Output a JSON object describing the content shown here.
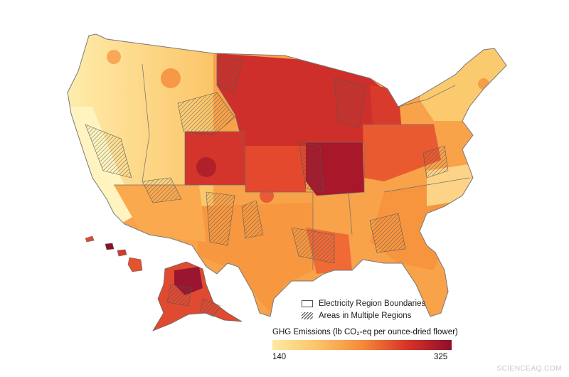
{
  "legend": {
    "boundaries_label": "Electricity Region Boundaries",
    "multi_region_label": "Areas in Multiple Regions"
  },
  "scale": {
    "title": "GHG Emissions (lb CO₂-eq per ounce-dried flower)",
    "min": "140",
    "max": "325",
    "colors": [
      "#ffeaa0",
      "#fbc46a",
      "#f58a3a",
      "#d83428",
      "#8e0f2a"
    ]
  },
  "watermark": "SCIENCEAQ.COM"
}
